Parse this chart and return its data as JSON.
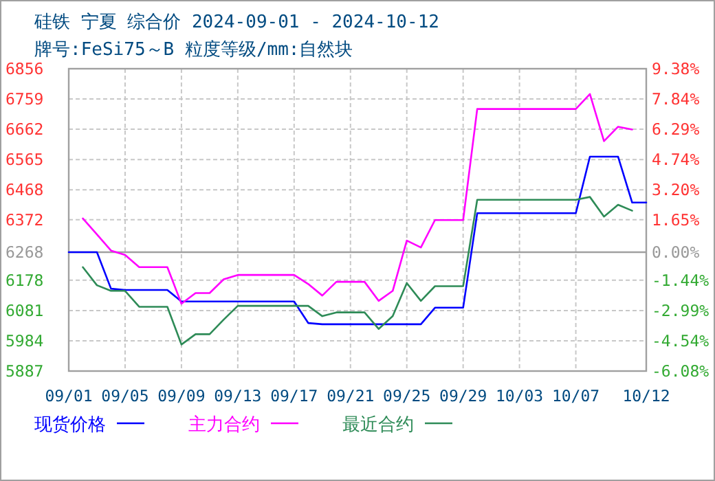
{
  "chart_data": {
    "type": "line",
    "title": "硅铁 宁夏 综合价 2024-09-01 - 2024-10-12",
    "subtitle": "牌号:FeSi75～B 粒度等级/mm:自然块",
    "x": [
      "2024-09-01",
      "2024-09-02",
      "2024-09-03",
      "2024-09-04",
      "2024-09-05",
      "2024-09-06",
      "2024-09-07",
      "2024-09-08",
      "2024-09-09",
      "2024-09-10",
      "2024-09-11",
      "2024-09-12",
      "2024-09-13",
      "2024-09-14",
      "2024-09-15",
      "2024-09-16",
      "2024-09-17",
      "2024-09-18",
      "2024-09-19",
      "2024-09-20",
      "2024-09-21",
      "2024-09-22",
      "2024-09-23",
      "2024-09-24",
      "2024-09-25",
      "2024-09-26",
      "2024-09-27",
      "2024-09-28",
      "2024-09-29",
      "2024-09-30",
      "2024-10-01",
      "2024-10-02",
      "2024-10-03",
      "2024-10-04",
      "2024-10-05",
      "2024-10-06",
      "2024-10-07",
      "2024-10-08",
      "2024-10-09",
      "2024-10-10",
      "2024-10-11",
      "2024-10-12"
    ],
    "series": [
      {
        "name": "现货价格",
        "color": "#0000ff",
        "values": [
          6268,
          6268,
          6268,
          6151,
          6147,
          6147,
          6147,
          6147,
          6110,
          6110,
          6110,
          6110,
          6110,
          6110,
          6110,
          6110,
          6110,
          6041,
          6037,
          6037,
          6037,
          6037,
          6037,
          6037,
          6037,
          6037,
          6090,
          6090,
          6090,
          6393,
          6393,
          6393,
          6393,
          6393,
          6393,
          6393,
          6393,
          6574,
          6574,
          6574,
          6427,
          6427
        ]
      },
      {
        "name": "主力合约",
        "color": "#ff00ff",
        "values": [
          null,
          6376,
          6325,
          6273,
          6259,
          6220,
          6220,
          6220,
          6103,
          6137,
          6137,
          6181,
          6195,
          6195,
          6195,
          6195,
          6195,
          6166,
          6129,
          6173,
          6173,
          6173,
          6112,
          6144,
          6305,
          6283,
          6371,
          6371,
          6371,
          6727,
          6727,
          6727,
          6727,
          6727,
          6727,
          6727,
          6727,
          6775,
          6624,
          6670,
          6661,
          null
        ]
      },
      {
        "name": "最近合约",
        "color": "#2e8b57",
        "values": [
          null,
          6220,
          6162,
          6144,
          6144,
          6093,
          6093,
          6093,
          5972,
          6005,
          6005,
          6052,
          6096,
          6096,
          6096,
          6096,
          6096,
          6096,
          6063,
          6075,
          6075,
          6075,
          6022,
          6063,
          6169,
          6112,
          6159,
          6159,
          6159,
          6436,
          6436,
          6436,
          6436,
          6436,
          6436,
          6436,
          6436,
          6445,
          6382,
          6420,
          6401,
          null
        ]
      }
    ],
    "xlim": [
      "2024-09-01",
      "2024-10-12"
    ],
    "xticks": [
      {
        "value": "2024-09-01",
        "label": "09/01"
      },
      {
        "value": "2024-09-05",
        "label": "09/05"
      },
      {
        "value": "2024-09-09",
        "label": "09/09"
      },
      {
        "value": "2024-09-13",
        "label": "09/13"
      },
      {
        "value": "2024-09-17",
        "label": "09/17"
      },
      {
        "value": "2024-09-21",
        "label": "09/21"
      },
      {
        "value": "2024-09-25",
        "label": "09/25"
      },
      {
        "value": "2024-09-29",
        "label": "09/29"
      },
      {
        "value": "2024-10-03",
        "label": "10/03"
      },
      {
        "value": "2024-10-07",
        "label": "10/07"
      },
      {
        "value": "2024-10-12",
        "label": "10/12"
      }
    ],
    "ylim": [
      5887,
      6856
    ],
    "yticks": [
      5887,
      5984,
      6081,
      6178,
      6268,
      6372,
      6468,
      6565,
      6662,
      6759,
      6856
    ],
    "y2lim": [
      -6.08,
      9.38
    ],
    "y2ticks": [
      {
        "value": -6.08,
        "label": "-6.08%"
      },
      {
        "value": -4.54,
        "label": "-4.54%"
      },
      {
        "value": -2.99,
        "label": "-2.99%"
      },
      {
        "value": -1.44,
        "label": "-1.44%"
      },
      {
        "value": 0,
        "label": "0.00%"
      },
      {
        "value": 1.65,
        "label": "1.65%"
      },
      {
        "value": 3.2,
        "label": "3.20%"
      },
      {
        "value": 4.74,
        "label": "4.74%"
      },
      {
        "value": 6.29,
        "label": "6.29%"
      },
      {
        "value": 7.84,
        "label": "7.84%"
      },
      {
        "value": 9.38,
        "label": "9.38%"
      }
    ],
    "ref_lines": [
      {
        "axis": "y",
        "value": 6268,
        "color": "#a0a0a0"
      }
    ],
    "grid": true,
    "legend": "bottom",
    "line_style": "solid",
    "marker": "none"
  }
}
